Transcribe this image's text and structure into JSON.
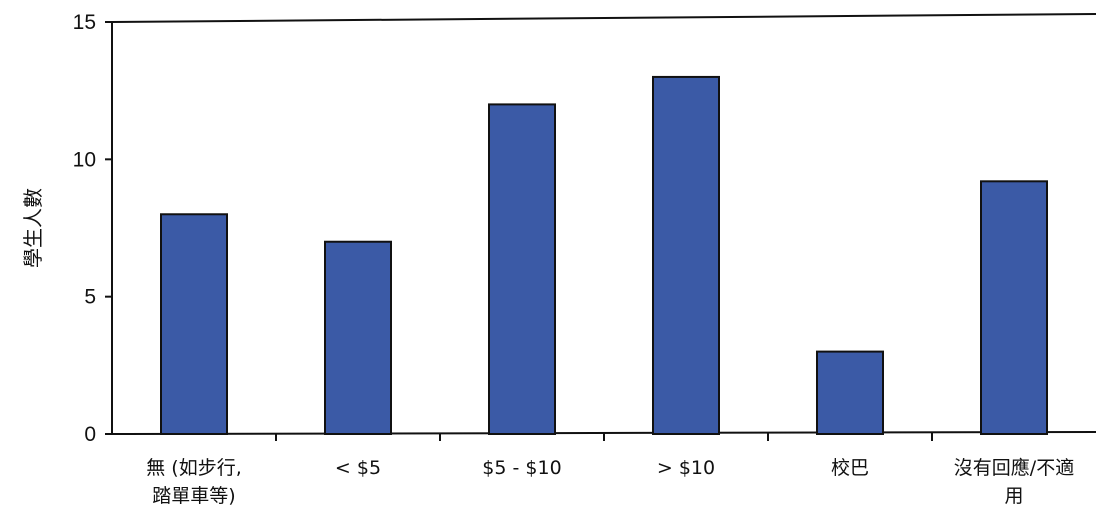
{
  "chart_data": {
    "type": "bar",
    "categories": [
      [
        "無 (如步行,",
        "踏單車等)"
      ],
      [
        "< $5"
      ],
      [
        "$5 - $10"
      ],
      [
        "> $10"
      ],
      [
        "校巴"
      ],
      [
        "沒有回應/不適",
        "用"
      ]
    ],
    "values": [
      8,
      7,
      12,
      13,
      3,
      9.2
    ],
    "ylabel": "學生人數",
    "ylim": [
      0,
      15
    ],
    "yticks": [
      0,
      5,
      10,
      15
    ],
    "grid": false,
    "bar_color": "#3b5aa6",
    "bar_edge_color": "#111111"
  }
}
